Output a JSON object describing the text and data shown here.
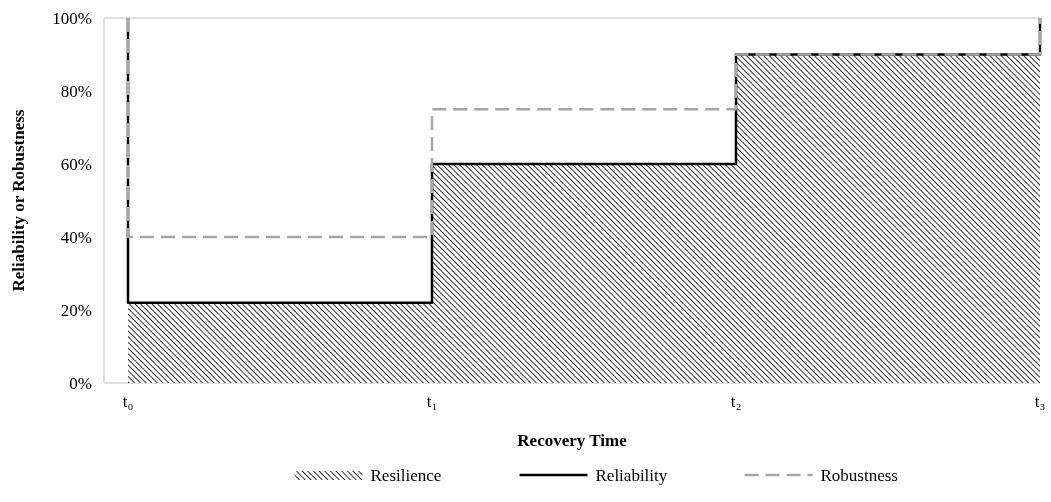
{
  "chart_data": {
    "type": "step",
    "xlabel": "Recovery Time",
    "ylabel": "Reliability or Robustness",
    "categories": [
      "t₀",
      "t₁",
      "t₂",
      "t₃"
    ],
    "ylim": [
      0,
      100
    ],
    "yticks": [
      {
        "value": 0,
        "label": "0%"
      },
      {
        "value": 20,
        "label": "20%"
      },
      {
        "value": 40,
        "label": "40%"
      },
      {
        "value": 60,
        "label": "60%"
      },
      {
        "value": 80,
        "label": "80%"
      },
      {
        "value": 100,
        "label": "100%"
      }
    ],
    "legend": "bottom",
    "series": [
      {
        "name": "Resilience",
        "type": "area",
        "color": "#000000",
        "x": [
          "t₀",
          "t₁",
          "t₂",
          "t₃"
        ],
        "values": [
          22,
          60,
          90,
          100
        ]
      },
      {
        "name": "Reliability",
        "color": "#000000",
        "line_style": "solid",
        "x": [
          "t₀",
          "t₀",
          "t₁",
          "t₂",
          "t₃"
        ],
        "values": [
          100,
          22,
          60,
          90,
          100
        ]
      },
      {
        "name": "Robustness",
        "color": "#a6a6a6",
        "line_style": "dashed",
        "x": [
          "t₀",
          "t₀",
          "t₁",
          "t₂",
          "t₃"
        ],
        "values": [
          100,
          40,
          75,
          90,
          100
        ]
      }
    ]
  }
}
